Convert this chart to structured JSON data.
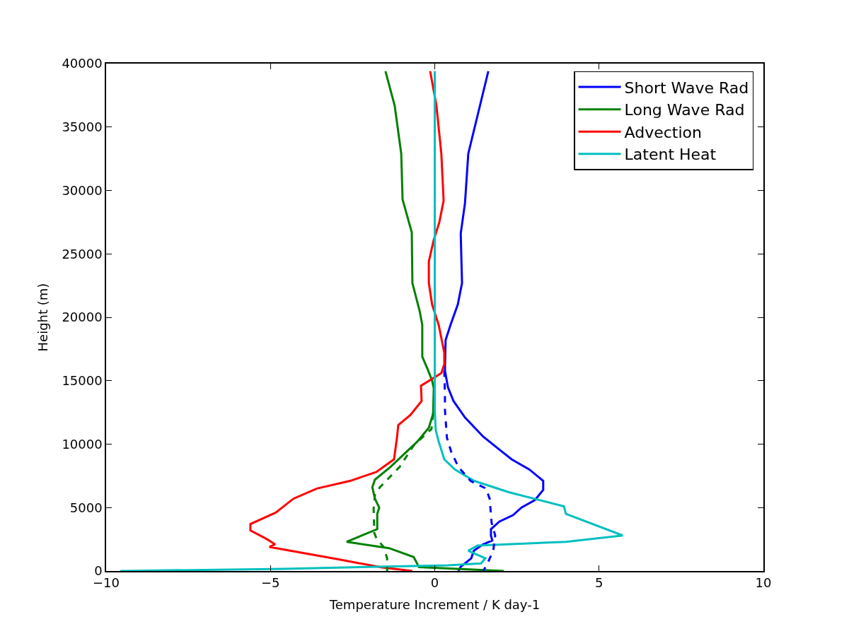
{
  "chart_data": {
    "type": "line",
    "xlabel": "Temperature Increment / K day-1",
    "ylabel": "Height (m)",
    "xlim": [
      -10,
      10
    ],
    "xticks": [
      {
        "value": -10,
        "label": "−10"
      },
      {
        "value": -5,
        "label": "−5"
      },
      0,
      5,
      10
    ],
    "ylim": [
      0,
      40000
    ],
    "yticks": [
      0,
      5000,
      10000,
      15000,
      20000,
      25000,
      30000,
      35000,
      40000
    ],
    "legend": "top right",
    "marker": "none",
    "series": [
      {
        "name": "Short Wave Rad",
        "color": "#0000ff",
        "line_style": "solid",
        "x": [
          1.63,
          1.02,
          0.92,
          0.79,
          0.83,
          0.7,
          0.48,
          0.33,
          0.31,
          0.4,
          0.57,
          0.92,
          1.47,
          1.95,
          2.34,
          2.88,
          3.3,
          3.3,
          3.05,
          2.64,
          2.38,
          1.97,
          1.71,
          1.71,
          1.75,
          1.47,
          1.19,
          1.11,
          0.79,
          0.72
        ],
        "values": [
          39400,
          32900,
          29000,
          26600,
          22700,
          21000,
          19400,
          18200,
          15800,
          14500,
          13400,
          12100,
          10600,
          9600,
          8800,
          8000,
          7100,
          6400,
          5600,
          5000,
          4400,
          3900,
          3300,
          2800,
          2400,
          2100,
          1600,
          1000,
          330,
          0
        ]
      },
      {
        "name": "Long Wave Rad",
        "color": "#008000",
        "line_style": "solid",
        "x": [
          -1.5,
          -1.22,
          -1.02,
          -0.98,
          -0.7,
          -0.68,
          -0.46,
          -0.38,
          -0.38,
          -0.2,
          -0.08,
          -0.03,
          -0.05,
          -0.18,
          -0.53,
          -1.02,
          -1.35,
          -1.82,
          -1.9,
          -1.82,
          -1.69,
          -1.75,
          -1.75,
          -2.68,
          -1.39,
          -0.64,
          -0.48,
          2.1
        ],
        "values": [
          39400,
          36700,
          32900,
          29300,
          26700,
          22700,
          20500,
          19400,
          16900,
          15800,
          15000,
          14400,
          12400,
          11300,
          10200,
          9000,
          8200,
          7200,
          6600,
          5700,
          5000,
          4500,
          3300,
          2300,
          1800,
          1100,
          300,
          0
        ]
      },
      {
        "name": "Advection",
        "color": "#ff0000",
        "line_style": "solid",
        "x": [
          -0.14,
          0.05,
          0.2,
          0.27,
          0.14,
          -0.03,
          -0.18,
          -0.18,
          -0.08,
          0.12,
          0.29,
          0.29,
          0.2,
          -0.42,
          -0.4,
          -0.74,
          -1.11,
          -1.15,
          -1.24,
          -1.78,
          -2.58,
          -3.59,
          -4.3,
          -4.84,
          -5.61,
          -5.61,
          -5.1,
          -4.86,
          -5.03,
          -4.19,
          -2.9,
          -1.6,
          -0.68
        ],
        "values": [
          39400,
          36700,
          32900,
          29200,
          27500,
          26100,
          24400,
          22700,
          21000,
          19400,
          17200,
          16300,
          15600,
          14600,
          13400,
          12300,
          11500,
          10500,
          8800,
          7800,
          7100,
          6500,
          5700,
          4600,
          3700,
          3200,
          2500,
          2100,
          1900,
          1500,
          900,
          280,
          0
        ]
      },
      {
        "name": "Latent Heat",
        "color": "#00bfbf",
        "line_style": "solid",
        "x": [
          0,
          0,
          0,
          0.03,
          0.12,
          0.29,
          0.61,
          1.2,
          2.27,
          3.93,
          3.99,
          5.72,
          4.0,
          1.3,
          1.02,
          1.54,
          1.41,
          0.4,
          -4.61,
          -9.57
        ],
        "values": [
          39400,
          17200,
          12700,
          11100,
          10200,
          8800,
          8000,
          7100,
          6200,
          5100,
          4500,
          2800,
          2300,
          2000,
          1600,
          1000,
          600,
          450,
          170,
          0
        ]
      },
      {
        "color": "#0000ff",
        "line_style": "dashed",
        "x": [
          0.29,
          0.31,
          0.31,
          0.37,
          0.5,
          0.72,
          1.09,
          1.56,
          1.67,
          1.73,
          1.84,
          1.78,
          1.58,
          1.47
        ],
        "values": [
          15800,
          13800,
          12700,
          10500,
          9400,
          8200,
          7100,
          6500,
          5700,
          3800,
          2800,
          1600,
          450,
          0
        ]
      },
      {
        "color": "#008000",
        "line_style": "dashed",
        "x": [
          -0.05,
          -0.1,
          -0.64,
          -1.07,
          -1.67,
          -1.82,
          -1.86,
          -1.84,
          -1.78,
          -1.56,
          -1.45,
          -1.45
        ],
        "values": [
          12400,
          11200,
          9900,
          8200,
          6600,
          6000,
          4900,
          3000,
          2600,
          1900,
          1000,
          0
        ]
      }
    ]
  }
}
